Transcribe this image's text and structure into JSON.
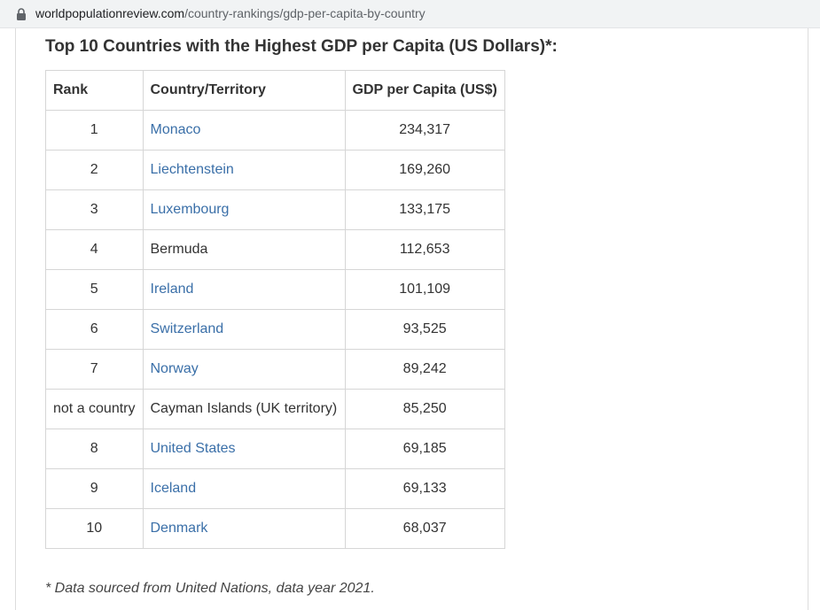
{
  "browser": {
    "url_host": "worldpopulationreview.com",
    "url_path": "/country-rankings/gdp-per-capita-by-country"
  },
  "page": {
    "heading": "Top 10 Countries with the Highest GDP per Capita (US Dollars)*:",
    "table": {
      "headers": [
        "Rank",
        "Country/Territory",
        "GDP per Capita (US$)"
      ],
      "rows": [
        {
          "rank": "1",
          "country": "Monaco",
          "gdp": "234,317",
          "is_link": true
        },
        {
          "rank": "2",
          "country": "Liechtenstein",
          "gdp": "169,260",
          "is_link": true
        },
        {
          "rank": "3",
          "country": "Luxembourg",
          "gdp": "133,175",
          "is_link": true
        },
        {
          "rank": "4",
          "country": "Bermuda",
          "gdp": "112,653",
          "is_link": false
        },
        {
          "rank": "5",
          "country": "Ireland",
          "gdp": "101,109",
          "is_link": true
        },
        {
          "rank": "6",
          "country": "Switzerland",
          "gdp": "93,525",
          "is_link": true
        },
        {
          "rank": "7",
          "country": "Norway",
          "gdp": "89,242",
          "is_link": true
        },
        {
          "rank": "not a country",
          "country": "Cayman Islands (UK territory)",
          "gdp": "85,250",
          "is_link": false
        },
        {
          "rank": "8",
          "country": "United States",
          "gdp": "69,185",
          "is_link": true
        },
        {
          "rank": "9",
          "country": "Iceland",
          "gdp": "69,133",
          "is_link": true
        },
        {
          "rank": "10",
          "country": "Denmark",
          "gdp": "68,037",
          "is_link": true
        }
      ]
    },
    "footnote": "* Data sourced from United Nations, data year 2021."
  },
  "colors": {
    "link": "#3a6fa8",
    "text": "#333333",
    "border": "#d6d6d6"
  },
  "icons": {
    "address_bar": "lock-icon"
  }
}
